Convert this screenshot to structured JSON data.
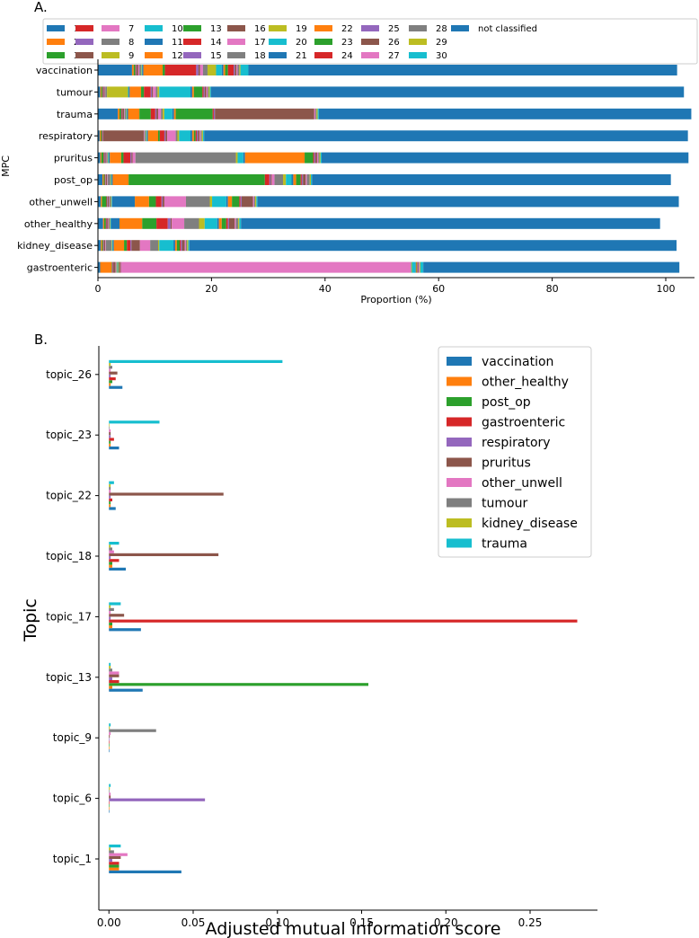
{
  "panels": {
    "a_label": "A.",
    "b_label": "B."
  },
  "colors": {
    "c1": "#1f77b4",
    "c2": "#ff7f0e",
    "c3": "#2ca02c",
    "c4": "#d62728",
    "c5": "#9467bd",
    "c6": "#8c564b",
    "c7": "#e377c2",
    "c8": "#7f7f7f",
    "c9": "#bcbd22",
    "c10": "#17becf"
  },
  "chart_data": [
    {
      "type": "bar",
      "orientation": "horizontal",
      "stacked": true,
      "title": "",
      "xlabel": "Proportion (%)",
      "ylabel": "MPC",
      "xlim": [
        0,
        100
      ],
      "xticks": [
        "0",
        "20",
        "40",
        "60",
        "80",
        "100"
      ],
      "legend_position": "top",
      "legend": [
        "1",
        "2",
        "3",
        "4",
        "5",
        "6",
        "7",
        "8",
        "9",
        "10",
        "11",
        "12",
        "13",
        "14",
        "15",
        "16",
        "17",
        "18",
        "19",
        "20",
        "21",
        "22",
        "23",
        "24",
        "25",
        "26",
        "27",
        "28",
        "29",
        "30",
        "not classified"
      ],
      "categories": [
        "vaccination",
        "tumour",
        "trauma",
        "respiratory",
        "pruritus",
        "post_op",
        "other_unwell",
        "other_healthy",
        "kidney_disease",
        "gastroenteric"
      ],
      "series": [
        {
          "name": "1",
          "values": [
            6.0,
            0.4,
            3.5,
            0.3,
            0.4,
            0.8,
            0.5,
            0.9,
            0.5,
            0.4
          ]
        },
        {
          "name": "2",
          "values": [
            0.3,
            0.2,
            0.3,
            0.2,
            0.2,
            0.2,
            0.2,
            0.2,
            0.2,
            2.0
          ]
        },
        {
          "name": "3",
          "values": [
            0.3,
            0.2,
            0.3,
            0.2,
            0.4,
            0.2,
            0.8,
            0.3,
            0.2,
            0.1
          ]
        },
        {
          "name": "4",
          "values": [
            0.1,
            0.1,
            0.1,
            0.1,
            0.1,
            0.1,
            0.1,
            0.1,
            0.1,
            0.1
          ]
        },
        {
          "name": "5",
          "values": [
            0.1,
            0.1,
            0.1,
            0.1,
            0.1,
            0.1,
            0.1,
            0.1,
            0.1,
            0.1
          ]
        },
        {
          "name": "6",
          "values": [
            0.3,
            0.2,
            0.3,
            7.2,
            0.2,
            0.2,
            0.2,
            0.2,
            0.2,
            0.4
          ]
        },
        {
          "name": "7",
          "values": [
            0.2,
            0.1,
            0.1,
            0.1,
            0.1,
            0.1,
            0.1,
            0.1,
            0.1,
            0.1
          ]
        },
        {
          "name": "8",
          "values": [
            0.3,
            0.3,
            0.2,
            0.2,
            0.2,
            0.5,
            0.3,
            0.2,
            1.0,
            0.1
          ]
        },
        {
          "name": "9",
          "values": [
            0.1,
            3.7,
            0.1,
            0.1,
            0.1,
            0.1,
            0.1,
            0.1,
            0.1,
            0.1
          ]
        },
        {
          "name": "10",
          "values": [
            0.1,
            0.1,
            0.1,
            0.1,
            0.1,
            0.1,
            0.1,
            0.1,
            0.1,
            0.1
          ]
        },
        {
          "name": "11",
          "values": [
            0.2,
            0.2,
            0.2,
            0.2,
            0.2,
            0.2,
            4.0,
            1.5,
            0.2,
            0.1
          ]
        },
        {
          "name": "12",
          "values": [
            3.4,
            2.0,
            2.0,
            1.8,
            2.0,
            2.8,
            2.5,
            4.0,
            1.8,
            0.1
          ]
        },
        {
          "name": "13",
          "values": [
            0.4,
            0.5,
            2.0,
            0.3,
            0.4,
            24.0,
            1.2,
            2.5,
            0.5,
            0.1
          ]
        },
        {
          "name": "14",
          "values": [
            5.5,
            1.2,
            0.8,
            0.8,
            1.2,
            0.8,
            1.0,
            2.0,
            0.6,
            0.1
          ]
        },
        {
          "name": "15",
          "values": [
            0.4,
            0.2,
            0.2,
            0.2,
            0.2,
            0.2,
            0.2,
            0.5,
            0.2,
            0.1
          ]
        },
        {
          "name": "16",
          "values": [
            0.3,
            0.2,
            0.3,
            0.3,
            0.2,
            0.2,
            0.3,
            0.2,
            1.5,
            0.1
          ]
        },
        {
          "name": "17",
          "values": [
            0.5,
            0.5,
            0.5,
            1.5,
            0.5,
            0.5,
            3.8,
            2.2,
            1.8,
            51.0
          ]
        },
        {
          "name": "18",
          "values": [
            0.8,
            0.3,
            0.3,
            0.3,
            17.7,
            1.5,
            4.2,
            2.6,
            1.4,
            0.1
          ]
        },
        {
          "name": "19",
          "values": [
            1.5,
            0.3,
            0.3,
            0.3,
            0.3,
            0.5,
            0.4,
            1.0,
            0.2,
            0.1
          ]
        },
        {
          "name": "20",
          "values": [
            1.0,
            5.5,
            1.4,
            2.0,
            1.0,
            1.0,
            2.5,
            2.2,
            2.5,
            0.6
          ]
        },
        {
          "name": "21",
          "values": [
            0.3,
            0.3,
            0.3,
            0.3,
            0.3,
            0.3,
            0.3,
            0.3,
            0.3,
            0.1
          ]
        },
        {
          "name": "22",
          "values": [
            0.3,
            0.3,
            0.3,
            0.3,
            10.5,
            0.5,
            0.7,
            0.5,
            0.3,
            0.1
          ]
        },
        {
          "name": "23",
          "values": [
            0.5,
            1.5,
            6.5,
            0.3,
            1.5,
            0.8,
            1.3,
            0.8,
            0.5,
            0.1
          ]
        },
        {
          "name": "24",
          "values": [
            1.0,
            0.2,
            0.2,
            0.2,
            0.2,
            0.2,
            0.2,
            0.3,
            0.2,
            0.1
          ]
        },
        {
          "name": "25",
          "values": [
            0.2,
            0.2,
            0.2,
            0.2,
            0.2,
            0.2,
            0.2,
            0.2,
            0.2,
            0.1
          ]
        },
        {
          "name": "26",
          "values": [
            0.3,
            0.3,
            17.5,
            0.3,
            0.3,
            0.5,
            2.0,
            1.0,
            0.5,
            0.1
          ]
        },
        {
          "name": "27",
          "values": [
            0.2,
            0.2,
            0.2,
            0.2,
            0.2,
            0.2,
            0.2,
            0.2,
            0.2,
            0.1
          ]
        },
        {
          "name": "28",
          "values": [
            0.3,
            0.2,
            0.2,
            0.2,
            0.2,
            0.5,
            0.2,
            0.4,
            0.2,
            0.1
          ]
        },
        {
          "name": "29",
          "values": [
            0.2,
            0.2,
            0.2,
            0.2,
            0.2,
            0.2,
            0.2,
            0.2,
            0.2,
            0.1
          ]
        },
        {
          "name": "30",
          "values": [
            1.4,
            0.2,
            0.2,
            0.2,
            0.2,
            0.2,
            0.2,
            0.3,
            0.2,
            0.5
          ]
        },
        {
          "name": "not classified",
          "values": [
            75.5,
            83.3,
            65.6,
            85.2,
            64.6,
            63.2,
            74.2,
            73.8,
            85.8,
            45.1
          ]
        }
      ]
    },
    {
      "type": "bar",
      "orientation": "horizontal",
      "grouped": true,
      "title": "",
      "xlabel": "Adjusted mutual information score",
      "ylabel": "Topic",
      "xlim": [
        -0.006,
        0.29
      ],
      "xticks": [
        "0.00",
        "0.05",
        "0.10",
        "0.15",
        "0.20",
        "0.25"
      ],
      "legend_position": "top-right",
      "categories": [
        "topic_1",
        "topic_6",
        "topic_9",
        "topic_13",
        "topic_17",
        "topic_18",
        "topic_22",
        "topic_23",
        "topic_26"
      ],
      "series": [
        {
          "name": "vaccination",
          "values": [
            0.043,
            0.0002,
            0.0002,
            0.02,
            0.019,
            0.01,
            0.004,
            0.006,
            0.008
          ]
        },
        {
          "name": "other_healthy",
          "values": [
            0.006,
            0.0003,
            0.0002,
            0.002,
            0.002,
            0.002,
            0.001,
            0.001,
            0.001
          ]
        },
        {
          "name": "post_op",
          "values": [
            0.006,
            0.0003,
            0.0002,
            0.154,
            0.002,
            0.002,
            0.001,
            0.001,
            0.002
          ]
        },
        {
          "name": "gastroenteric",
          "values": [
            0.006,
            0.0003,
            0.0003,
            0.006,
            0.278,
            0.006,
            0.002,
            0.003,
            0.004
          ]
        },
        {
          "name": "respiratory",
          "values": [
            0.002,
            0.057,
            0.0003,
            0.002,
            0.001,
            0.001,
            0.001,
            0.001,
            0.001
          ]
        },
        {
          "name": "pruritus",
          "values": [
            0.007,
            0.001,
            0.0005,
            0.006,
            0.009,
            0.065,
            0.068,
            0.001,
            0.005
          ]
        },
        {
          "name": "other_unwell",
          "values": [
            0.011,
            0.001,
            0.001,
            0.006,
            0.001,
            0.003,
            0.001,
            0.001,
            0.001
          ]
        },
        {
          "name": "tumour",
          "values": [
            0.003,
            0.0003,
            0.028,
            0.002,
            0.003,
            0.002,
            0.001,
            0.0003,
            0.002
          ]
        },
        {
          "name": "kidney_disease",
          "values": [
            0.001,
            0.0005,
            0.0005,
            0.001,
            0.001,
            0.001,
            0.001,
            0.0003,
            0.001
          ]
        },
        {
          "name": "trauma",
          "values": [
            0.007,
            0.001,
            0.001,
            0.001,
            0.007,
            0.006,
            0.003,
            0.03,
            0.103
          ]
        }
      ]
    }
  ]
}
